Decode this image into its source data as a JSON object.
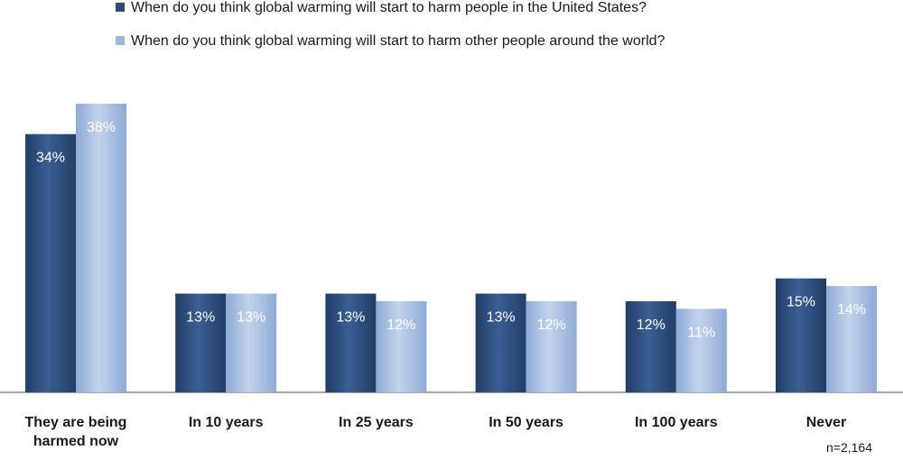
{
  "chart_data": {
    "type": "bar",
    "categories": [
      "They are being harmed now",
      "In 10 years",
      "In 25 years",
      "In 50 years",
      "In 100 years",
      "Never"
    ],
    "category_lines": [
      [
        "They are being",
        "harmed now"
      ],
      [
        "In 10 years"
      ],
      [
        "In 25 years"
      ],
      [
        "In 50 years"
      ],
      [
        "In 100 years"
      ],
      [
        "Never"
      ]
    ],
    "series": [
      {
        "name": "When do you think global warming  will start  to harm people in the United States?",
        "values": [
          34,
          13,
          13,
          13,
          12,
          15
        ],
        "labels": [
          "34%",
          "13%",
          "13%",
          "13%",
          "12%",
          "15%"
        ],
        "color_dark": "#223d66",
        "color_light": "#3a5f94"
      },
      {
        "name": "When do you think global warming  will start  to harm other people around the world?",
        "values": [
          38,
          13,
          12,
          12,
          11,
          14
        ],
        "labels": [
          "38%",
          "13%",
          "12%",
          "12%",
          "11%",
          "14%"
        ],
        "color_dark": "#8eaad6",
        "color_light": "#c3d3ec"
      }
    ],
    "ylim": [
      0,
      38
    ],
    "value_format": "percent",
    "grid": false,
    "legend_position": "top-left",
    "note": "n=2,164"
  }
}
